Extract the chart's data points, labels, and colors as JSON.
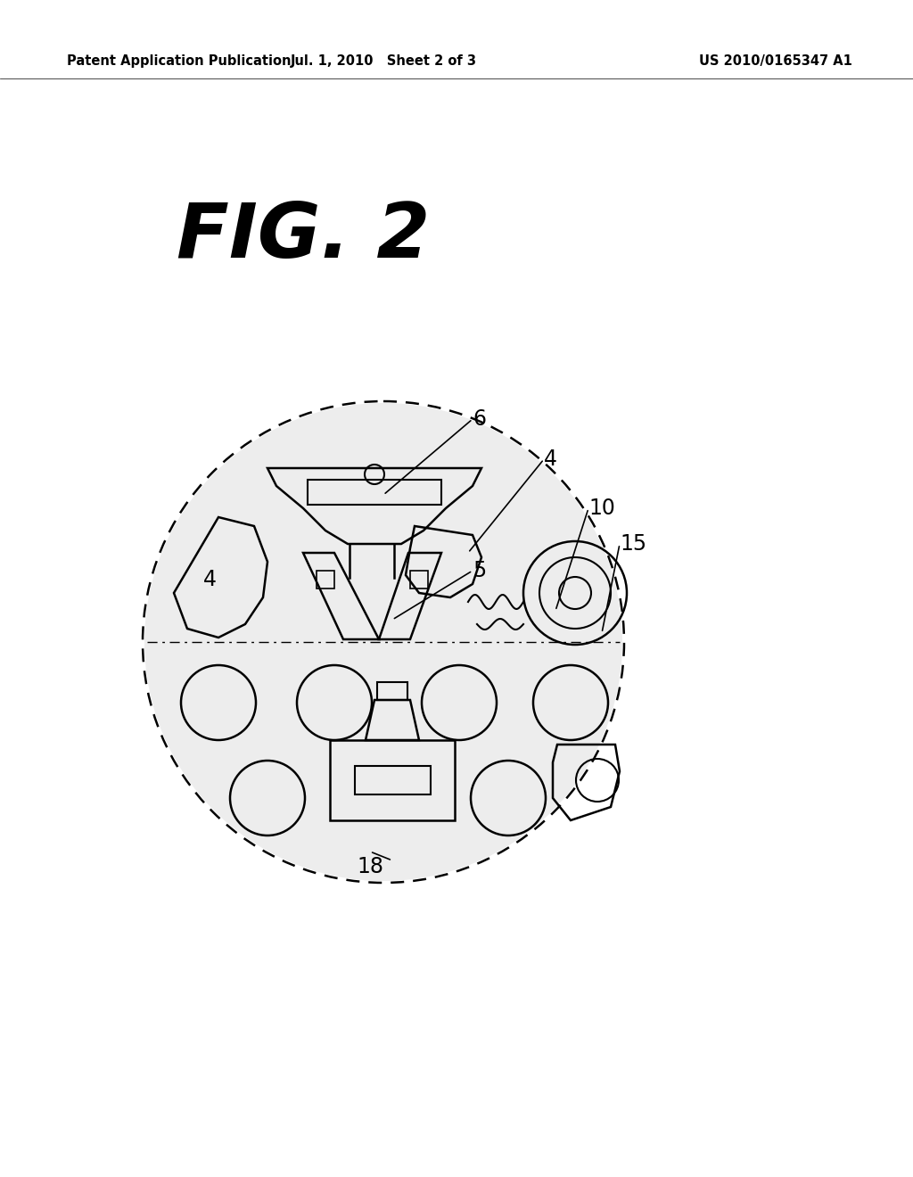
{
  "background_color": "#ffffff",
  "header_left": "Patent Application Publication",
  "header_mid": "Jul. 1, 2010   Sheet 2 of 3",
  "header_right": "US 2010/0165347 A1",
  "fig_title": "FIG. 2"
}
